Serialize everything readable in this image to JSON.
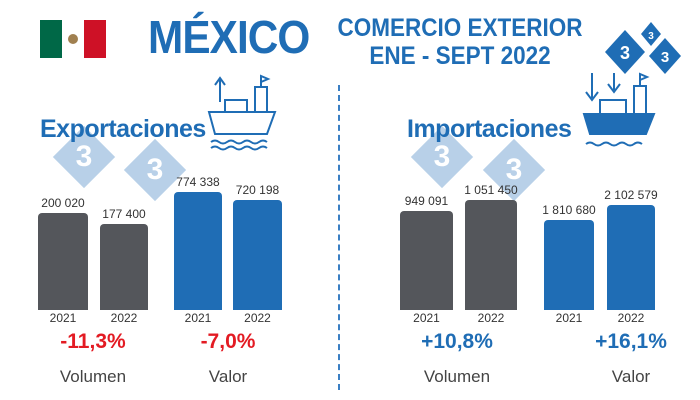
{
  "header": {
    "title": "MÉXICO",
    "subtitle_line1": "COMERCIO EXTERIOR",
    "subtitle_line2": "ENE - SEPT 2022",
    "logo_text": "333"
  },
  "colors": {
    "accent": "#1f6db5",
    "bar_2021": "#54565b",
    "bar_2022_value": "#1f6db5",
    "negative": "#e31b23",
    "positive": "#1f6db5",
    "flag_green": "#006847",
    "flag_red": "#ce1126"
  },
  "icons": [
    "mexico-flag-icon",
    "ship-export-icon",
    "ship-import-icon",
    "logo-333-icon"
  ],
  "chart_data": [
    {
      "type": "bar",
      "section": "Exportaciones",
      "label": "Volumen",
      "change": "-11,3%",
      "categories": [
        "2021",
        "2022"
      ],
      "values": [
        200020,
        177400
      ],
      "value_labels": [
        "200 020",
        "177 400"
      ],
      "color": "#54565b"
    },
    {
      "type": "bar",
      "section": "Exportaciones",
      "label": "Valor",
      "change": "-7,0%",
      "categories": [
        "2021",
        "2022"
      ],
      "values": [
        774338,
        720198
      ],
      "value_labels": [
        "774 338",
        "720 198"
      ],
      "color": "#1f6db5"
    },
    {
      "type": "bar",
      "section": "Importaciones",
      "label": "Volumen",
      "change": "+10,8%",
      "categories": [
        "2021",
        "2022"
      ],
      "values": [
        949091,
        1051450
      ],
      "value_labels": [
        "949 091",
        "1 051 450"
      ],
      "color": "#54565b"
    },
    {
      "type": "bar",
      "section": "Importaciones",
      "label": "Valor",
      "change": "+16,1%",
      "categories": [
        "2021",
        "2022"
      ],
      "values": [
        1810680,
        2102579
      ],
      "value_labels": [
        "1 810 680",
        "2 102 579"
      ],
      "color": "#1f6db5"
    }
  ]
}
